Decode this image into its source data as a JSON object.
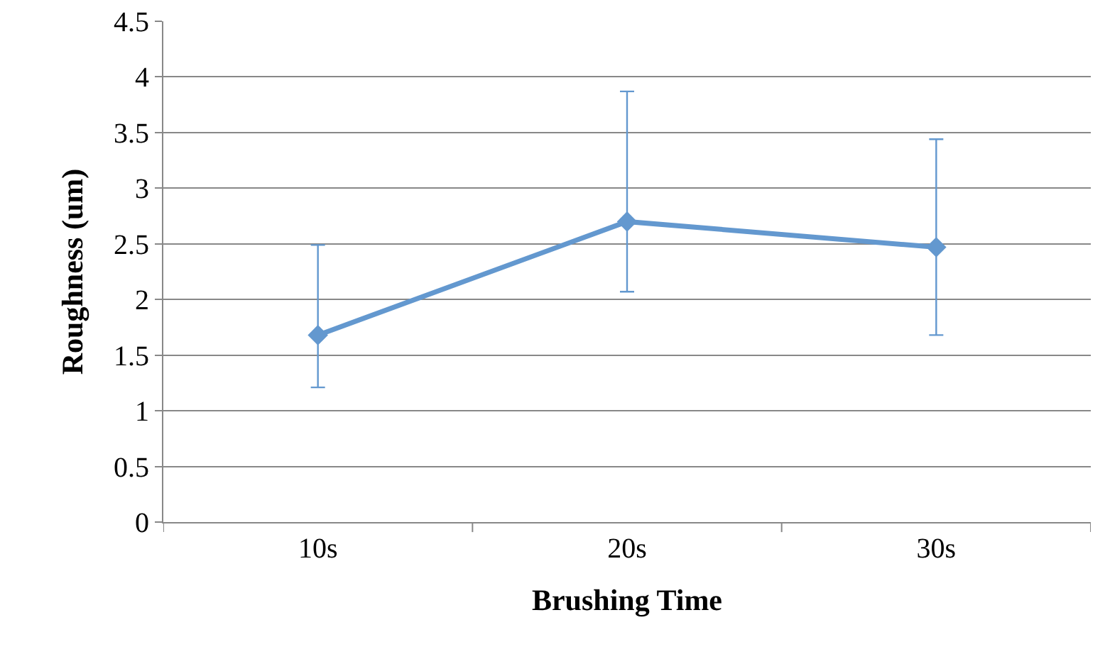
{
  "chart_data": {
    "type": "line",
    "xlabel": "Brushing Time",
    "ylabel": "Roughness (um)",
    "categories": [
      "10s",
      "20s",
      "30s"
    ],
    "series": [
      {
        "color": "#6398cf",
        "values": [
          1.68,
          2.7,
          2.47
        ],
        "errors": [
          [
            1.21,
            2.49
          ],
          [
            2.07,
            3.87
          ],
          [
            1.68,
            3.44
          ]
        ]
      }
    ],
    "ylim": [
      0,
      4.5
    ],
    "yticks": [
      0,
      0.5,
      1,
      1.5,
      2,
      2.5,
      3,
      3.5,
      4,
      4.5
    ],
    "grid": "y",
    "legend": false,
    "marker": "diamond",
    "line_style": "solid"
  }
}
